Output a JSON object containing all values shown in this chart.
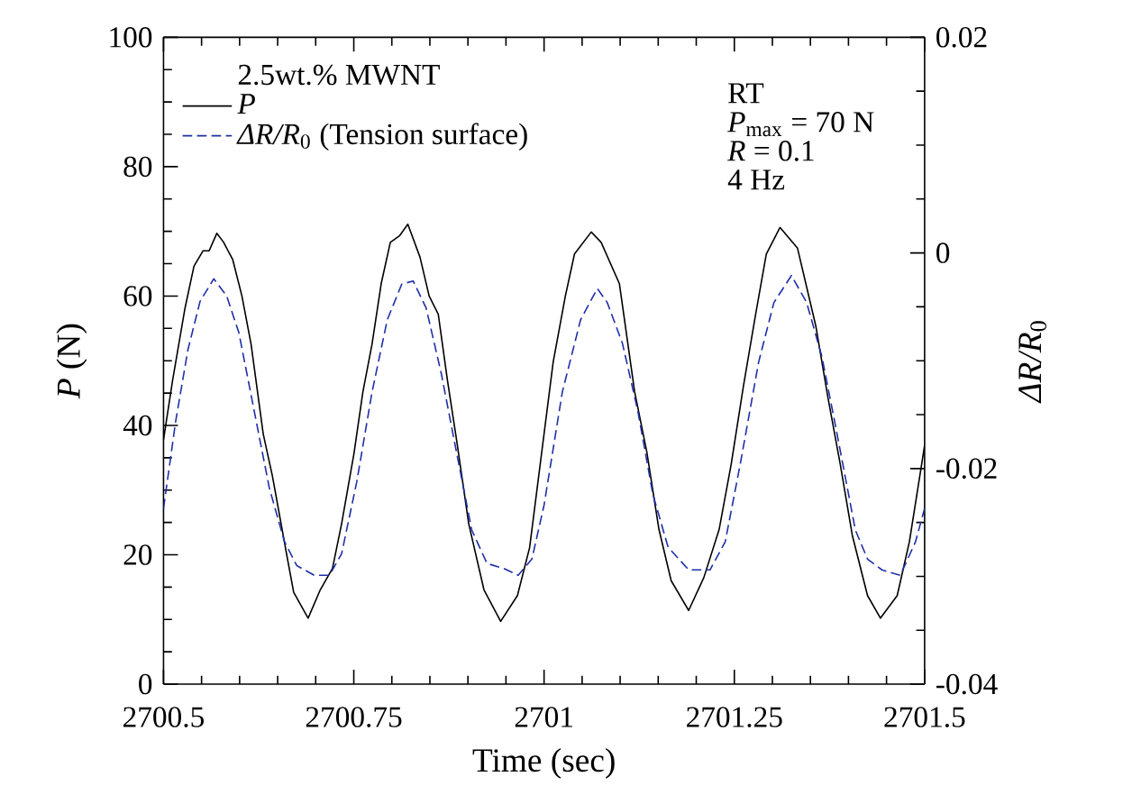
{
  "chart_data": {
    "type": "line",
    "xlabel": "Time (sec)",
    "ylabel": "*P* (N)",
    "y2label": "*ΔR/R*$_{0}$",
    "legend_title": "2.5wt.% MWNT",
    "legend": "top left",
    "xlim": [
      2700.5,
      2701.5
    ],
    "xticks": [
      2700.5,
      2700.75,
      2701,
      2701.25,
      2701.5
    ],
    "ylim": [
      0,
      100
    ],
    "yticks": [
      0,
      20,
      40,
      60,
      80,
      100
    ],
    "y2lim": [
      -0.04,
      0.02
    ],
    "y2ticks": [
      -0.04,
      -0.02,
      0,
      0.02
    ],
    "annotations": [
      "RT",
      "*P*$_{max}$ = 70 N",
      "*R* = 0.1",
      "4 Hz"
    ],
    "series": [
      {
        "name": "*P*",
        "color": "#000000",
        "line_style": "solid",
        "x": [
          2700.5,
          2700.512,
          2700.528,
          2700.54,
          2700.552,
          2700.56,
          2700.57,
          2700.579,
          2700.591,
          2700.603,
          2700.615,
          2700.631,
          2700.643,
          2700.663,
          2700.671,
          2700.69,
          2700.706,
          2700.722,
          2700.734,
          2700.75,
          2700.762,
          2700.774,
          2700.786,
          2700.798,
          2700.81,
          2700.821,
          2700.837,
          2700.849,
          2700.861,
          2700.873,
          2700.885,
          2700.901,
          2700.921,
          2700.943,
          2700.965,
          2700.981,
          2701.0,
          2701.012,
          2701.028,
          2701.04,
          2701.062,
          2701.075,
          2701.099,
          2701.119,
          2701.135,
          2701.151,
          2701.167,
          2701.19,
          2701.21,
          2701.23,
          2701.246,
          2701.262,
          2701.278,
          2701.292,
          2701.31,
          2701.333,
          2701.357,
          2701.373,
          2701.389,
          2701.405,
          2701.425,
          2701.442,
          2701.464,
          2701.48,
          2701.5
        ],
        "values": [
          37.8,
          47,
          58,
          64.6,
          67,
          67,
          69.7,
          68.3,
          65.6,
          60,
          52.6,
          38.7,
          32.2,
          19.3,
          14.2,
          10.2,
          14.6,
          17.9,
          24.8,
          35.5,
          45.2,
          52.6,
          61.9,
          68.3,
          69.3,
          71.1,
          66,
          60,
          57.2,
          47,
          37.8,
          24.8,
          14.6,
          9.7,
          13.7,
          21.1,
          38.7,
          49.8,
          60,
          66.5,
          69.9,
          68.3,
          61.9,
          45.2,
          35.9,
          23.9,
          16,
          11.4,
          16.5,
          23.9,
          34.1,
          46.1,
          57.2,
          66.5,
          70.6,
          67.4,
          55.4,
          44.3,
          34.1,
          23,
          13.7,
          10.2,
          13.7,
          22,
          36.9
        ]
      },
      {
        "name": "*ΔR/R*$_{0}$ (Tension surface)",
        "color": "#1f2fa8",
        "line_style": "dashed",
        "axis": "y2",
        "x": [
          2700.5,
          2700.516,
          2700.532,
          2700.548,
          2700.566,
          2700.583,
          2700.599,
          2700.619,
          2700.639,
          2700.659,
          2700.675,
          2700.698,
          2700.718,
          2700.734,
          2700.754,
          2700.774,
          2700.794,
          2700.813,
          2700.828,
          2700.845,
          2700.865,
          2700.885,
          2700.905,
          2700.925,
          2700.948,
          2700.966,
          2700.984,
          2701.0,
          2701.024,
          2701.048,
          2701.07,
          2701.083,
          2701.103,
          2701.123,
          2701.143,
          2701.163,
          2701.19,
          2701.218,
          2701.238,
          2701.258,
          2701.282,
          2701.302,
          2701.325,
          2701.345,
          2701.365,
          2701.385,
          2701.409,
          2701.425,
          2701.444,
          2701.468,
          2701.488,
          2701.5
        ],
        "values": [
          -0.0237,
          -0.0156,
          -0.009,
          -0.0045,
          -0.0024,
          -0.004,
          -0.0074,
          -0.0146,
          -0.0218,
          -0.0268,
          -0.029,
          -0.0299,
          -0.0299,
          -0.0279,
          -0.0212,
          -0.0129,
          -0.0062,
          -0.0029,
          -0.0026,
          -0.0051,
          -0.0112,
          -0.0185,
          -0.0257,
          -0.0288,
          -0.0293,
          -0.0299,
          -0.0284,
          -0.0234,
          -0.0129,
          -0.0062,
          -0.0033,
          -0.0046,
          -0.0084,
          -0.0146,
          -0.0224,
          -0.0273,
          -0.0294,
          -0.0294,
          -0.0268,
          -0.0195,
          -0.0101,
          -0.0046,
          -0.0021,
          -0.0046,
          -0.0096,
          -0.0168,
          -0.0257,
          -0.0284,
          -0.0294,
          -0.0299,
          -0.0268,
          -0.0237
        ]
      }
    ]
  }
}
